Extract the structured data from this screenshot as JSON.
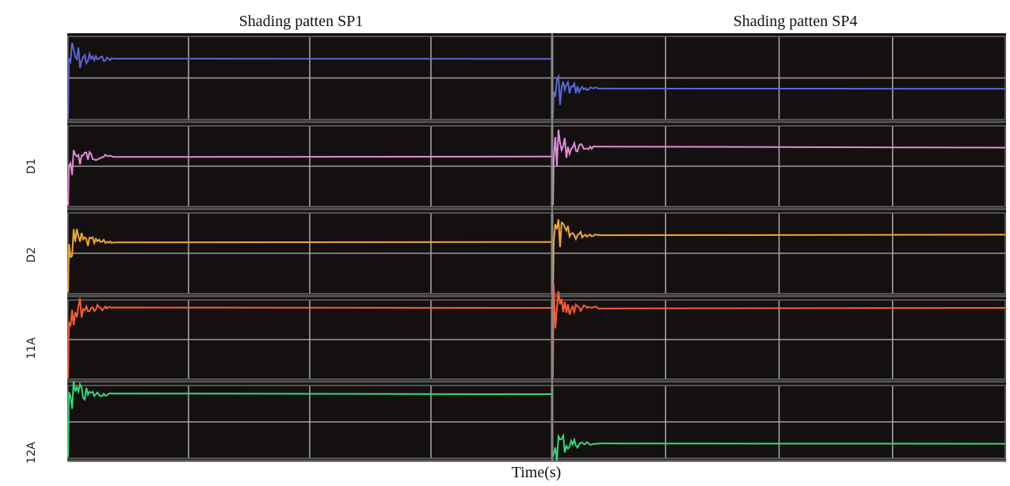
{
  "panels": [
    {
      "title": "Shading patten SP1"
    },
    {
      "title": "Shading patten SP4"
    }
  ],
  "row_labels": [
    "D1",
    "D2",
    "11A",
    "12A"
  ],
  "x_label": "Time(s)"
}
